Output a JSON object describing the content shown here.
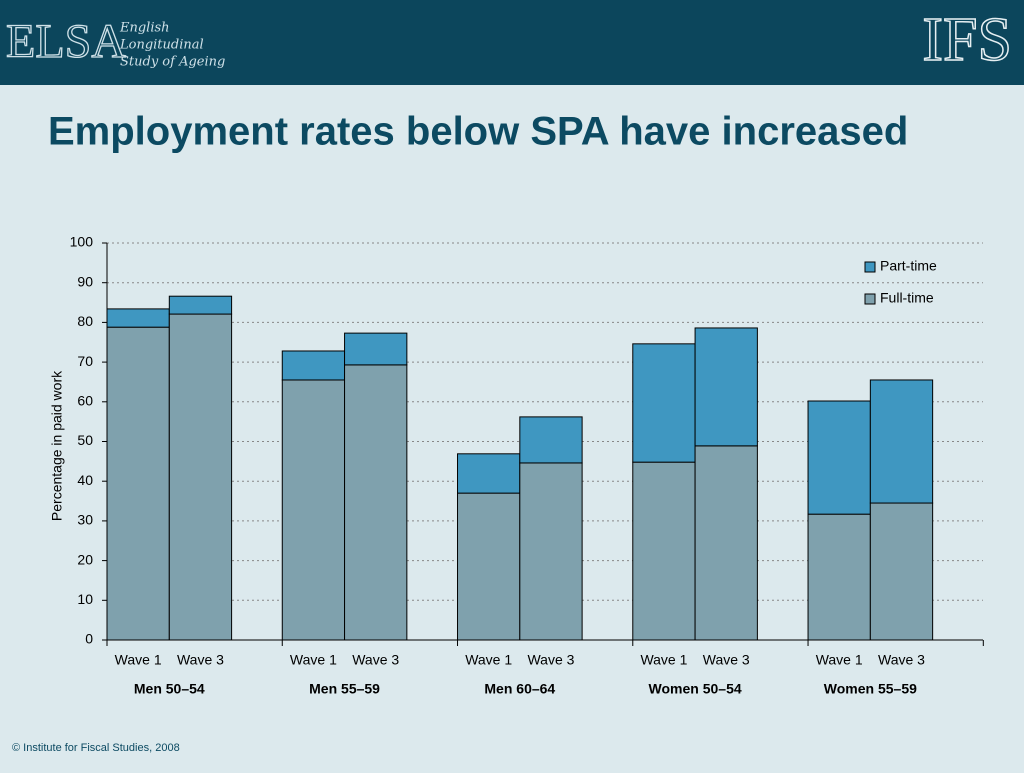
{
  "header": {
    "logo": "ELSA",
    "logo_lines": [
      "English",
      "Longitudinal",
      "Study of Ageing"
    ],
    "right_logo": "IFS"
  },
  "footer": "© Institute for Fiscal Studies, 2008",
  "chart_data": {
    "type": "stacked_bar",
    "title": "Employment rates below SPA have increased",
    "y_label": "Percentage in paid work",
    "groups": [
      "Men 50–54",
      "Men 55–59",
      "Men 60–64",
      "Women 50–54",
      "Women 55–59"
    ],
    "categories": [
      "Wave 1",
      "Wave 3",
      "Wave 1",
      "Wave 3",
      "Wave 1",
      "Wave 3",
      "Wave 1",
      "Wave 3",
      "Wave 1",
      "Wave 3"
    ],
    "series": [
      {
        "name": "Full-time",
        "color": "#7fa1ad",
        "values": [
          78.8,
          82.1,
          65.5,
          69.3,
          37.0,
          44.6,
          44.8,
          48.9,
          31.7,
          34.5
        ]
      },
      {
        "name": "Part-time",
        "color": "#3f97c1",
        "values": [
          4.6,
          4.5,
          7.3,
          8.0,
          9.9,
          11.6,
          29.8,
          29.7,
          28.5,
          31.0
        ]
      }
    ],
    "ylim": [
      0,
      100
    ],
    "yticks": [
      0,
      10,
      20,
      30,
      40,
      50,
      60,
      70,
      80,
      90,
      100
    ],
    "grid": true,
    "legend": "top-right"
  }
}
